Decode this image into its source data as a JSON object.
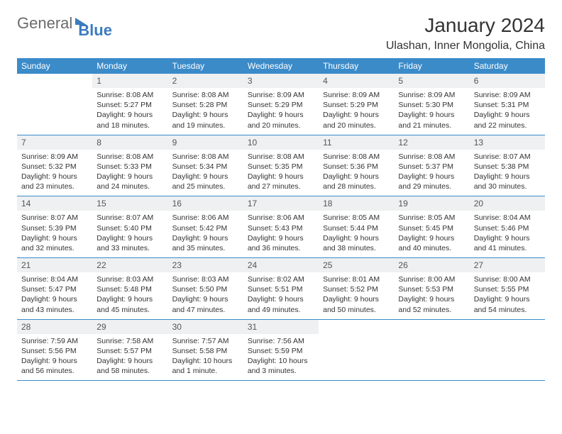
{
  "logo": {
    "general": "General",
    "blue": "Blue"
  },
  "header": {
    "month_title": "January 2024",
    "location": "Ulashan, Inner Mongolia, China"
  },
  "colors": {
    "header_bg": "#3b8bc9",
    "header_fg": "#ffffff",
    "daynum_bg": "#eef0f1",
    "rule": "#3b8bc9",
    "text": "#333333",
    "logo_gray": "#6b6b6b",
    "logo_blue": "#3b7bbf",
    "page_bg": "#ffffff"
  },
  "typography": {
    "title_fontsize": 28,
    "location_fontsize": 16,
    "dayheader_fontsize": 12,
    "cell_fontsize": 10.5
  },
  "days_of_week": [
    "Sunday",
    "Monday",
    "Tuesday",
    "Wednesday",
    "Thursday",
    "Friday",
    "Saturday"
  ],
  "first_weekday_offset": 1,
  "days": [
    {
      "n": 1,
      "sunrise": "8:08 AM",
      "sunset": "5:27 PM",
      "daylight": "9 hours and 18 minutes."
    },
    {
      "n": 2,
      "sunrise": "8:08 AM",
      "sunset": "5:28 PM",
      "daylight": "9 hours and 19 minutes."
    },
    {
      "n": 3,
      "sunrise": "8:09 AM",
      "sunset": "5:29 PM",
      "daylight": "9 hours and 20 minutes."
    },
    {
      "n": 4,
      "sunrise": "8:09 AM",
      "sunset": "5:29 PM",
      "daylight": "9 hours and 20 minutes."
    },
    {
      "n": 5,
      "sunrise": "8:09 AM",
      "sunset": "5:30 PM",
      "daylight": "9 hours and 21 minutes."
    },
    {
      "n": 6,
      "sunrise": "8:09 AM",
      "sunset": "5:31 PM",
      "daylight": "9 hours and 22 minutes."
    },
    {
      "n": 7,
      "sunrise": "8:09 AM",
      "sunset": "5:32 PM",
      "daylight": "9 hours and 23 minutes."
    },
    {
      "n": 8,
      "sunrise": "8:08 AM",
      "sunset": "5:33 PM",
      "daylight": "9 hours and 24 minutes."
    },
    {
      "n": 9,
      "sunrise": "8:08 AM",
      "sunset": "5:34 PM",
      "daylight": "9 hours and 25 minutes."
    },
    {
      "n": 10,
      "sunrise": "8:08 AM",
      "sunset": "5:35 PM",
      "daylight": "9 hours and 27 minutes."
    },
    {
      "n": 11,
      "sunrise": "8:08 AM",
      "sunset": "5:36 PM",
      "daylight": "9 hours and 28 minutes."
    },
    {
      "n": 12,
      "sunrise": "8:08 AM",
      "sunset": "5:37 PM",
      "daylight": "9 hours and 29 minutes."
    },
    {
      "n": 13,
      "sunrise": "8:07 AM",
      "sunset": "5:38 PM",
      "daylight": "9 hours and 30 minutes."
    },
    {
      "n": 14,
      "sunrise": "8:07 AM",
      "sunset": "5:39 PM",
      "daylight": "9 hours and 32 minutes."
    },
    {
      "n": 15,
      "sunrise": "8:07 AM",
      "sunset": "5:40 PM",
      "daylight": "9 hours and 33 minutes."
    },
    {
      "n": 16,
      "sunrise": "8:06 AM",
      "sunset": "5:42 PM",
      "daylight": "9 hours and 35 minutes."
    },
    {
      "n": 17,
      "sunrise": "8:06 AM",
      "sunset": "5:43 PM",
      "daylight": "9 hours and 36 minutes."
    },
    {
      "n": 18,
      "sunrise": "8:05 AM",
      "sunset": "5:44 PM",
      "daylight": "9 hours and 38 minutes."
    },
    {
      "n": 19,
      "sunrise": "8:05 AM",
      "sunset": "5:45 PM",
      "daylight": "9 hours and 40 minutes."
    },
    {
      "n": 20,
      "sunrise": "8:04 AM",
      "sunset": "5:46 PM",
      "daylight": "9 hours and 41 minutes."
    },
    {
      "n": 21,
      "sunrise": "8:04 AM",
      "sunset": "5:47 PM",
      "daylight": "9 hours and 43 minutes."
    },
    {
      "n": 22,
      "sunrise": "8:03 AM",
      "sunset": "5:48 PM",
      "daylight": "9 hours and 45 minutes."
    },
    {
      "n": 23,
      "sunrise": "8:03 AM",
      "sunset": "5:50 PM",
      "daylight": "9 hours and 47 minutes."
    },
    {
      "n": 24,
      "sunrise": "8:02 AM",
      "sunset": "5:51 PM",
      "daylight": "9 hours and 49 minutes."
    },
    {
      "n": 25,
      "sunrise": "8:01 AM",
      "sunset": "5:52 PM",
      "daylight": "9 hours and 50 minutes."
    },
    {
      "n": 26,
      "sunrise": "8:00 AM",
      "sunset": "5:53 PM",
      "daylight": "9 hours and 52 minutes."
    },
    {
      "n": 27,
      "sunrise": "8:00 AM",
      "sunset": "5:55 PM",
      "daylight": "9 hours and 54 minutes."
    },
    {
      "n": 28,
      "sunrise": "7:59 AM",
      "sunset": "5:56 PM",
      "daylight": "9 hours and 56 minutes."
    },
    {
      "n": 29,
      "sunrise": "7:58 AM",
      "sunset": "5:57 PM",
      "daylight": "9 hours and 58 minutes."
    },
    {
      "n": 30,
      "sunrise": "7:57 AM",
      "sunset": "5:58 PM",
      "daylight": "10 hours and 1 minute."
    },
    {
      "n": 31,
      "sunrise": "7:56 AM",
      "sunset": "5:59 PM",
      "daylight": "10 hours and 3 minutes."
    }
  ],
  "labels": {
    "sunrise": "Sunrise: ",
    "sunset": "Sunset: ",
    "daylight": "Daylight: "
  }
}
